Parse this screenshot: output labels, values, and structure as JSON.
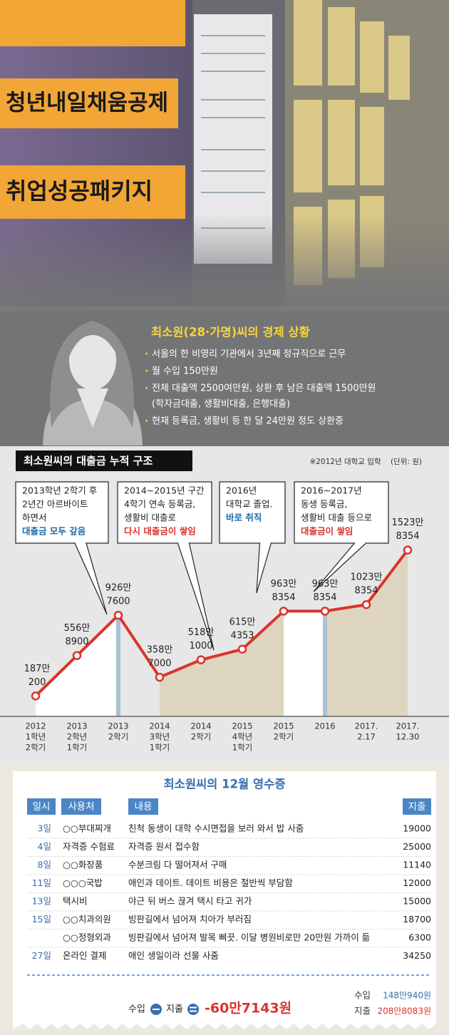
{
  "photo": {
    "signs": [
      "청년내일채움공제",
      "취업성공패키지"
    ]
  },
  "profile": {
    "title": "최소원(28·가명)씨의 경제 상황",
    "bullets": [
      [
        "서울의 한 비영리 기관에서 3년째 정규직으로 근무"
      ],
      [
        "월 수입 150만원"
      ],
      [
        "전체 대출액 2500여만원, 상환 후 남은 대출액 1500만원",
        "(학자금대출, 생활비대출, 은행대출)"
      ],
      [
        "현재 등록금, 생활비 등 한 달 24만원 정도 상환중"
      ]
    ]
  },
  "chart_data": {
    "type": "line",
    "title": "최소원씨의 대출금 누적 구조",
    "note": "※2012년 대학교 입학    (단위: 원)",
    "categories": [
      [
        "2012",
        "1학년",
        "2학기"
      ],
      [
        "2013",
        "2학년",
        "1학기"
      ],
      [
        "2013",
        "2학기"
      ],
      [
        "2014",
        "3학년",
        "1학기"
      ],
      [
        "2014",
        "2학기"
      ],
      [
        "2015",
        "4학년",
        "1학기"
      ],
      [
        "2015",
        "2학기"
      ],
      [
        "2016"
      ],
      [
        "2017.",
        "2.17"
      ],
      [
        "2017.",
        "12.30"
      ]
    ],
    "series": [
      {
        "name": "대출금",
        "color": "#d9342b",
        "values": [
          1870200,
          5568900,
          9267600,
          3587000,
          5181000,
          6154353,
          9638354,
          9638354,
          10238354,
          15238354
        ],
        "value_labels": [
          [
            "187만",
            "200"
          ],
          [
            "556만",
            "8900"
          ],
          [
            "926만",
            "7600"
          ],
          [
            "358만",
            "7000"
          ],
          [
            "518만",
            "1000"
          ],
          [
            "615만",
            "4353"
          ],
          [
            "963만",
            "8354"
          ],
          [
            "963만",
            "8354"
          ],
          [
            "1023만",
            "8354"
          ],
          [
            "1523만",
            "8354"
          ]
        ]
      }
    ],
    "ylim": [
      0,
      16000000
    ],
    "callouts": [
      {
        "lines": [
          "2013학년 2학기 후",
          "2년간 아르바이트",
          "하면서"
        ],
        "emphasis": "대출금 모두 갚음",
        "emphasis_color": "#1f6aa5"
      },
      {
        "lines": [
          "2014~2015년 구간",
          "4학기 연속 등록금,",
          "생활비 대출로"
        ],
        "emphasis": "다시 대출금이 쌓임",
        "emphasis_color": "#d9342b"
      },
      {
        "lines": [
          "2016년",
          "대학교 졸업."
        ],
        "emphasis": "바로 취직",
        "emphasis_color": "#1f6aa5"
      },
      {
        "lines": [
          "2016~2017년",
          "동생 등록금,",
          "생활비 대출 등으로"
        ],
        "emphasis": "대출금이 쌓임",
        "emphasis_color": "#d9342b"
      }
    ]
  },
  "receipt": {
    "title": "최소원씨의 12월 영수증",
    "header": [
      "일시",
      "사용처",
      "내용",
      "지출"
    ],
    "rows": [
      [
        "3일",
        "○○부대찌개",
        "친척 동생이 대학 수시면접을 보러 와서 밥 사줌",
        19000
      ],
      [
        "4일",
        "자격증 수험료",
        "자격증 원서 접수함",
        25000
      ],
      [
        "8일",
        "○○화장품",
        "수분크림 다 떨어져서 구매",
        11140
      ],
      [
        "11일",
        "○○○국밥",
        "애인과 데이트. 데이트 비용은 절반씩 부담함",
        12000
      ],
      [
        "13일",
        "택시비",
        "야근 뒤 버스 끊겨 택시 타고 귀가",
        15000
      ],
      [
        "15일",
        "○○치과의원",
        "빙판길에서 넘어져 치아가 부러짐",
        18700
      ],
      [
        null,
        "○○정형외과",
        "빙판길에서 넘어져 발목 삐끗. 이달 병원비로만 20만원 가까이 듦",
        6300
      ],
      [
        "27일",
        "온라인 결제",
        "애인 생일이라 선물 사줌",
        34250
      ]
    ],
    "summary": {
      "income": "수입",
      "expense": "지출",
      "result": "-60만7143원",
      "income_total": "148만940원",
      "expense_total": "208만8083원"
    }
  }
}
